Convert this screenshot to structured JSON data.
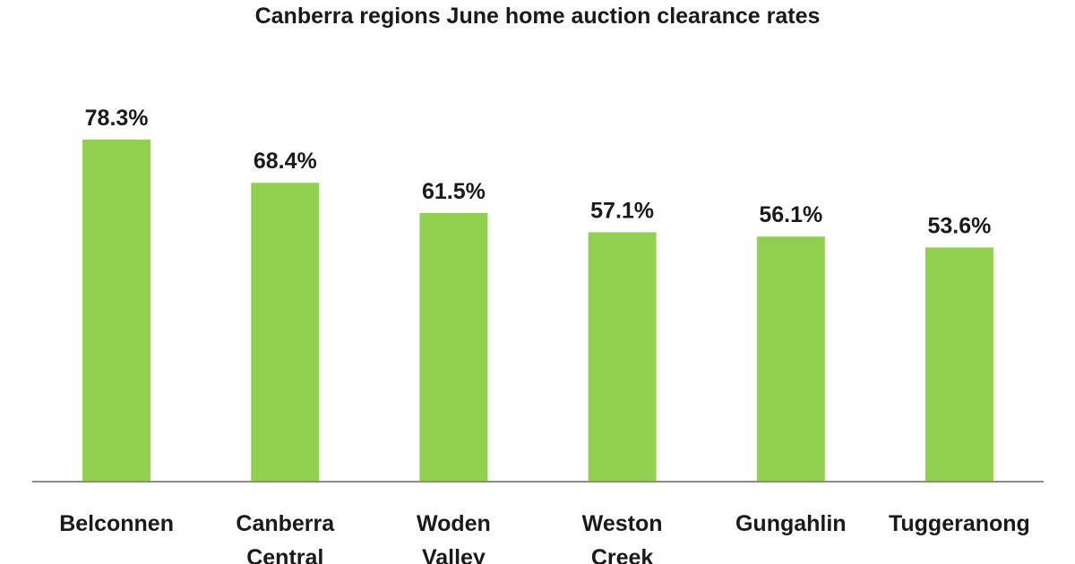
{
  "chart_data": {
    "type": "bar",
    "title": "Canberra regions June home auction clearance rates",
    "xlabel": "",
    "ylabel": "",
    "categories": [
      "Belconnen",
      "Canberra Central",
      "Woden Valley",
      "Weston Creek",
      "Gungahlin",
      "Tuggeranong"
    ],
    "values": [
      78.3,
      68.4,
      61.5,
      57.1,
      56.1,
      53.6
    ],
    "data_labels": [
      "78.3%",
      "68.4%",
      "61.5%",
      "57.1%",
      "56.1%",
      "53.6%"
    ],
    "ylim": [
      0,
      100
    ],
    "grid": false,
    "legend": "none",
    "bar_color": "#92d050"
  }
}
